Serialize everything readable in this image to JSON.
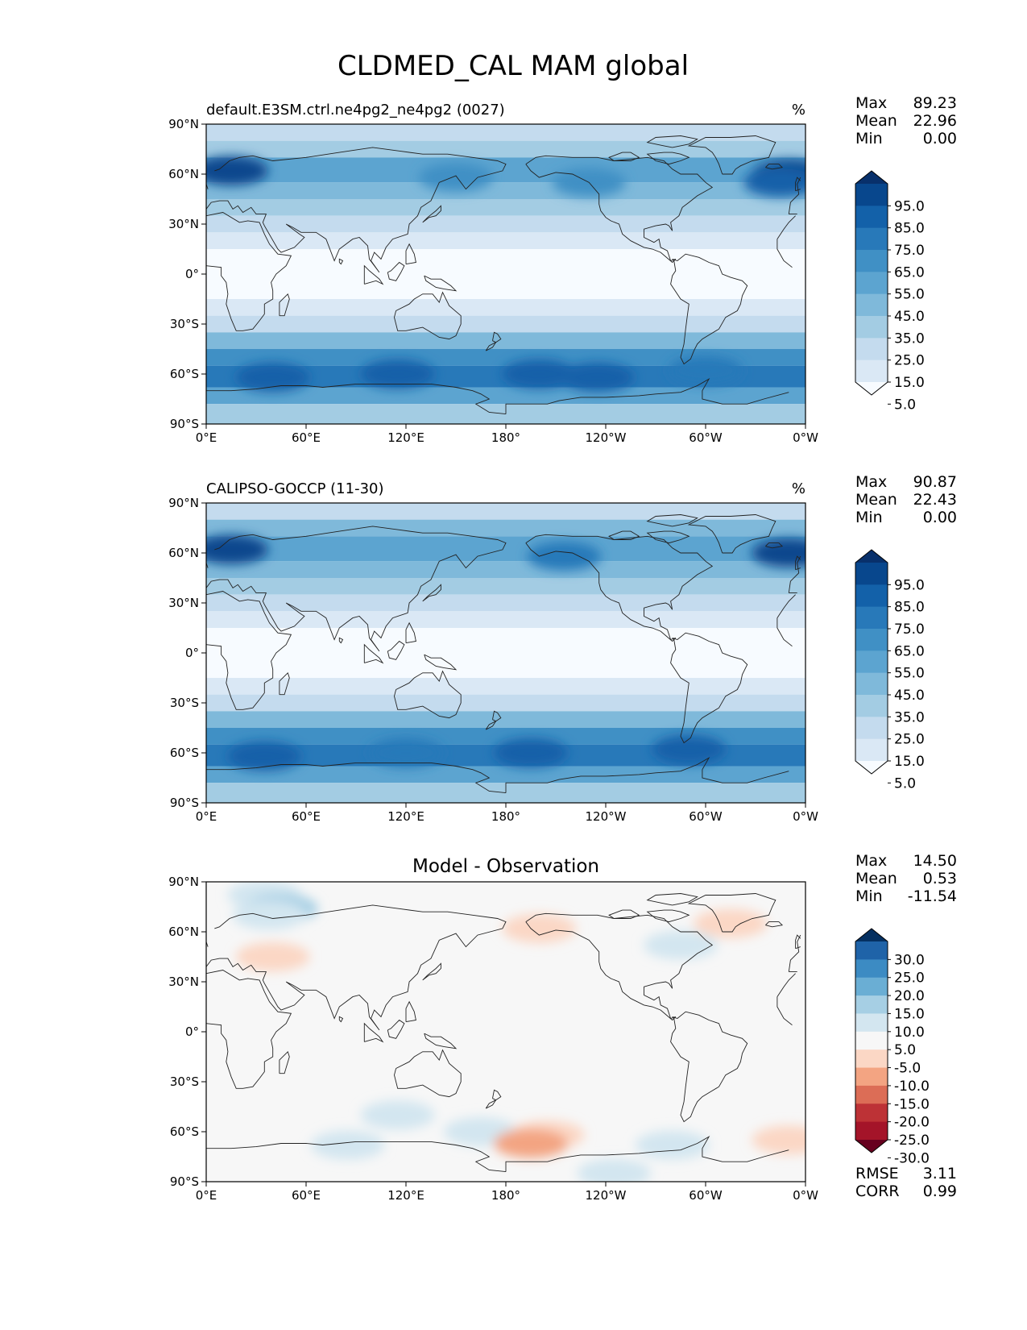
{
  "figure": {
    "title": "CLDMED_CAL MAM global"
  },
  "axes": {
    "lon_ticks": [
      "0°E",
      "60°E",
      "120°E",
      "180°",
      "120°W",
      "60°W",
      "0°W"
    ],
    "lat_ticks": [
      "90°N",
      "60°N",
      "30°N",
      "0°",
      "30°S",
      "60°S",
      "90°S"
    ]
  },
  "panels": [
    {
      "id": "model",
      "left_title": "default.E3SM.ctrl.ne4pg2_ne4pg2 (0027)",
      "center_title": "",
      "units": "%",
      "stats": [
        {
          "label": "Max",
          "value": "89.23"
        },
        {
          "label": "Mean",
          "value": "22.96"
        },
        {
          "label": "Min",
          "value": "0.00"
        }
      ],
      "footer_stats": [],
      "colorbar": {
        "labels": [
          "95.0",
          "85.0",
          "75.0",
          "65.0",
          "55.0",
          "45.0",
          "35.0",
          "25.0",
          "15.0",
          "5.0"
        ],
        "colors": [
          "#08306b",
          "#08478d",
          "#1361a9",
          "#2879b9",
          "#4090c5",
          "#5ca4d0",
          "#7fb9da",
          "#a3cce3",
          "#c4dbee",
          "#dae8f5",
          "#f7fbff"
        ]
      }
    },
    {
      "id": "obs",
      "left_title": "CALIPSO-GOCCP (11-30)",
      "center_title": "",
      "units": "%",
      "stats": [
        {
          "label": "Max",
          "value": "90.87"
        },
        {
          "label": "Mean",
          "value": "22.43"
        },
        {
          "label": "Min",
          "value": "0.00"
        }
      ],
      "footer_stats": [],
      "colorbar": {
        "labels": [
          "95.0",
          "85.0",
          "75.0",
          "65.0",
          "55.0",
          "45.0",
          "35.0",
          "25.0",
          "15.0",
          "5.0"
        ],
        "colors": [
          "#08306b",
          "#08478d",
          "#1361a9",
          "#2879b9",
          "#4090c5",
          "#5ca4d0",
          "#7fb9da",
          "#a3cce3",
          "#c4dbee",
          "#dae8f5",
          "#f7fbff"
        ]
      }
    },
    {
      "id": "diff",
      "left_title": "",
      "center_title": "Model - Observation",
      "units": "",
      "stats": [
        {
          "label": "Max",
          "value": "14.50"
        },
        {
          "label": "Mean",
          "value": "0.53"
        },
        {
          "label": "Min",
          "value": "-11.54"
        }
      ],
      "footer_stats": [
        {
          "label": "RMSE",
          "value": "3.11"
        },
        {
          "label": "CORR",
          "value": "0.99"
        }
      ],
      "colorbar": {
        "labels": [
          "30.0",
          "25.0",
          "20.0",
          "15.0",
          "10.0",
          "5.0",
          "-5.0",
          "-10.0",
          "-15.0",
          "-20.0",
          "-25.0",
          "-30.0"
        ],
        "colors": [
          "#053061",
          "#1f63a8",
          "#3c8bc3",
          "#6aaed4",
          "#a6cfe4",
          "#d3e6f0",
          "#f7f7f7",
          "#fbd7c5",
          "#f3a482",
          "#dc6d56",
          "#bd3236",
          "#a41429",
          "#67001f"
        ]
      }
    }
  ],
  "chart_data": [
    {
      "type": "heatmap",
      "projection": "plate-carree",
      "title": "default.E3SM.ctrl.ne4pg2_ne4pg2 (0027)",
      "units": "%",
      "xlim": [
        0,
        360
      ],
      "ylim": [
        -90,
        90
      ],
      "levels": [
        5,
        15,
        25,
        35,
        45,
        55,
        65,
        75,
        85,
        95
      ],
      "extend": "both",
      "bands": [
        {
          "lat": [
            80,
            90
          ],
          "value": 15
        },
        {
          "lat": [
            70,
            80
          ],
          "value": 30
        },
        {
          "lat": [
            55,
            70
          ],
          "value": 50
        },
        {
          "lat": [
            45,
            55
          ],
          "value": 42
        },
        {
          "lat": [
            35,
            45
          ],
          "value": 30
        },
        {
          "lat": [
            25,
            35
          ],
          "value": 18
        },
        {
          "lat": [
            15,
            25
          ],
          "value": 8
        },
        {
          "lat": [
            -15,
            15
          ],
          "value": 4
        },
        {
          "lat": [
            -25,
            -15
          ],
          "value": 8
        },
        {
          "lat": [
            -35,
            -25
          ],
          "value": 18
        },
        {
          "lat": [
            -45,
            -35
          ],
          "value": 35
        },
        {
          "lat": [
            -55,
            -45
          ],
          "value": 58
        },
        {
          "lat": [
            -68,
            -55
          ],
          "value": 68
        },
        {
          "lat": [
            -78,
            -68
          ],
          "value": 52
        },
        {
          "lat": [
            -90,
            -78
          ],
          "value": 32
        }
      ],
      "features": [
        {
          "lon": 15,
          "lat": 62,
          "value": 85
        },
        {
          "lon": 350,
          "lat": 60,
          "value": 85
        },
        {
          "lon": 345,
          "lat": 55,
          "value": 75
        },
        {
          "lon": 150,
          "lat": 58,
          "value": 60
        },
        {
          "lon": 230,
          "lat": 55,
          "value": 62
        },
        {
          "lon": 40,
          "lat": -62,
          "value": 80
        },
        {
          "lon": 115,
          "lat": -60,
          "value": 78
        },
        {
          "lon": 200,
          "lat": -60,
          "value": 76
        },
        {
          "lon": 235,
          "lat": -62,
          "value": 78
        },
        {
          "lon": 300,
          "lat": -58,
          "value": 74
        }
      ],
      "stats": {
        "max": 89.23,
        "mean": 22.96,
        "min": 0.0
      }
    },
    {
      "type": "heatmap",
      "projection": "plate-carree",
      "title": "CALIPSO-GOCCP (11-30)",
      "units": "%",
      "xlim": [
        0,
        360
      ],
      "ylim": [
        -90,
        90
      ],
      "levels": [
        5,
        15,
        25,
        35,
        45,
        55,
        65,
        75,
        85,
        95
      ],
      "extend": "both",
      "bands": [
        {
          "lat": [
            80,
            90
          ],
          "value": 20
        },
        {
          "lat": [
            70,
            80
          ],
          "value": 35
        },
        {
          "lat": [
            55,
            70
          ],
          "value": 52
        },
        {
          "lat": [
            45,
            55
          ],
          "value": 42
        },
        {
          "lat": [
            35,
            45
          ],
          "value": 28
        },
        {
          "lat": [
            25,
            35
          ],
          "value": 15
        },
        {
          "lat": [
            15,
            25
          ],
          "value": 8
        },
        {
          "lat": [
            -15,
            15
          ],
          "value": 4
        },
        {
          "lat": [
            -25,
            -15
          ],
          "value": 7
        },
        {
          "lat": [
            -35,
            -25
          ],
          "value": 16
        },
        {
          "lat": [
            -45,
            -35
          ],
          "value": 36
        },
        {
          "lat": [
            -55,
            -45
          ],
          "value": 60
        },
        {
          "lat": [
            -68,
            -55
          ],
          "value": 68
        },
        {
          "lat": [
            -78,
            -68
          ],
          "value": 52
        },
        {
          "lat": [
            -90,
            -78
          ],
          "value": 30
        }
      ],
      "features": [
        {
          "lon": 15,
          "lat": 62,
          "value": 85
        },
        {
          "lon": 350,
          "lat": 60,
          "value": 85
        },
        {
          "lon": 215,
          "lat": 58,
          "value": 66
        },
        {
          "lon": 35,
          "lat": -62,
          "value": 78
        },
        {
          "lon": 120,
          "lat": -60,
          "value": 74
        },
        {
          "lon": 195,
          "lat": -60,
          "value": 80
        },
        {
          "lon": 290,
          "lat": -58,
          "value": 76
        }
      ],
      "stats": {
        "max": 90.87,
        "mean": 22.43,
        "min": 0.0
      }
    },
    {
      "type": "heatmap",
      "projection": "plate-carree",
      "title": "Model - Observation",
      "units": "",
      "xlim": [
        0,
        360
      ],
      "ylim": [
        -90,
        90
      ],
      "levels": [
        -30,
        -25,
        -20,
        -15,
        -10,
        -5,
        5,
        10,
        15,
        20,
        25,
        30
      ],
      "extend": "both",
      "bands": [
        {
          "lat": [
            -90,
            90
          ],
          "value": 0
        }
      ],
      "features": [
        {
          "lon": 35,
          "lat": 82,
          "value": 7
        },
        {
          "lon": 45,
          "lat": 74,
          "value": 13
        },
        {
          "lon": 38,
          "lat": 70,
          "value": 8
        },
        {
          "lon": 40,
          "lat": 45,
          "value": -7
        },
        {
          "lon": 200,
          "lat": 62,
          "value": -7
        },
        {
          "lon": 315,
          "lat": 65,
          "value": -7
        },
        {
          "lon": 285,
          "lat": 52,
          "value": 7
        },
        {
          "lon": 115,
          "lat": -50,
          "value": 7
        },
        {
          "lon": 165,
          "lat": -60,
          "value": 6
        },
        {
          "lon": 205,
          "lat": -62,
          "value": -7
        },
        {
          "lon": 195,
          "lat": -67,
          "value": -12
        },
        {
          "lon": 245,
          "lat": -85,
          "value": 8
        },
        {
          "lon": 280,
          "lat": -68,
          "value": 7
        },
        {
          "lon": 350,
          "lat": -65,
          "value": -7
        },
        {
          "lon": 85,
          "lat": -68,
          "value": 6
        }
      ],
      "stats": {
        "max": 14.5,
        "mean": 0.53,
        "min": -11.54,
        "rmse": 3.11,
        "corr": 0.99
      }
    }
  ]
}
